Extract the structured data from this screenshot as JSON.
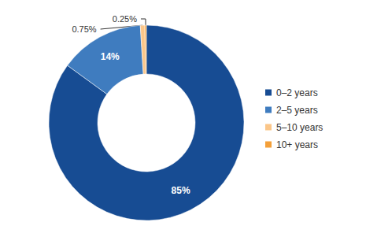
{
  "chart_data": {
    "type": "pie",
    "categories": [
      "0–2 years",
      "2–5 years",
      "5–10 years",
      "10+ years"
    ],
    "values": [
      85,
      14,
      0.75,
      0.25
    ],
    "value_labels": [
      "85%",
      "14%",
      "0.75%",
      "0.25%"
    ],
    "colors": [
      "#174c93",
      "#3f7cbf",
      "#fbc689",
      "#f4a03a"
    ],
    "data_labels": true,
    "legend": "right"
  }
}
